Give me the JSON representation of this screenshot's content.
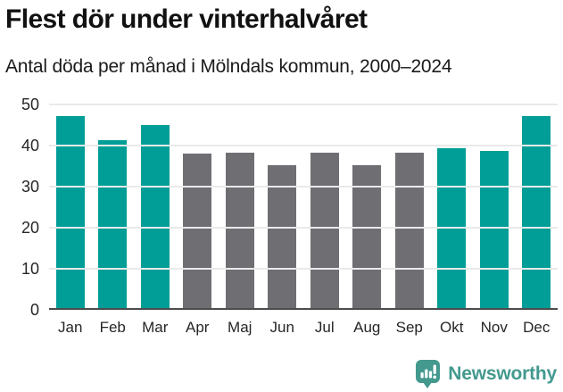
{
  "header": {
    "title": "Flest dör under vinterhalvåret",
    "subtitle": "Antal döda per månad i Mölndals kommun, 2000–2024"
  },
  "chart_data": {
    "type": "bar",
    "title": "Flest dör under vinterhalvåret",
    "subtitle": "Antal döda per månad i Mölndals kommun, 2000–2024",
    "categories": [
      "Jan",
      "Feb",
      "Mar",
      "Apr",
      "Maj",
      "Jun",
      "Jul",
      "Aug",
      "Sep",
      "Okt",
      "Nov",
      "Dec"
    ],
    "values": [
      47.2,
      41.2,
      45.0,
      38.0,
      38.3,
      35.3,
      38.2,
      35.2,
      38.2,
      39.3,
      38.6,
      47.2
    ],
    "bar_groups": [
      "winter",
      "winter",
      "winter",
      "summer",
      "summer",
      "summer",
      "summer",
      "summer",
      "summer",
      "winter",
      "winter",
      "winter"
    ],
    "xlabel": "",
    "ylabel": "",
    "yticks": [
      0,
      10,
      20,
      30,
      40,
      50
    ],
    "ylim": [
      0,
      50
    ],
    "grid": true,
    "legend": "none"
  },
  "colors": {
    "winter_bar": "#009e97",
    "summer_bar": "#6e6e73",
    "gridline": "#eaeaea",
    "axis_line": "#4c4c4c",
    "tick_label": "#262626",
    "logo_teal": "#44998f"
  },
  "footer": {
    "brand": "Newsworthy"
  }
}
